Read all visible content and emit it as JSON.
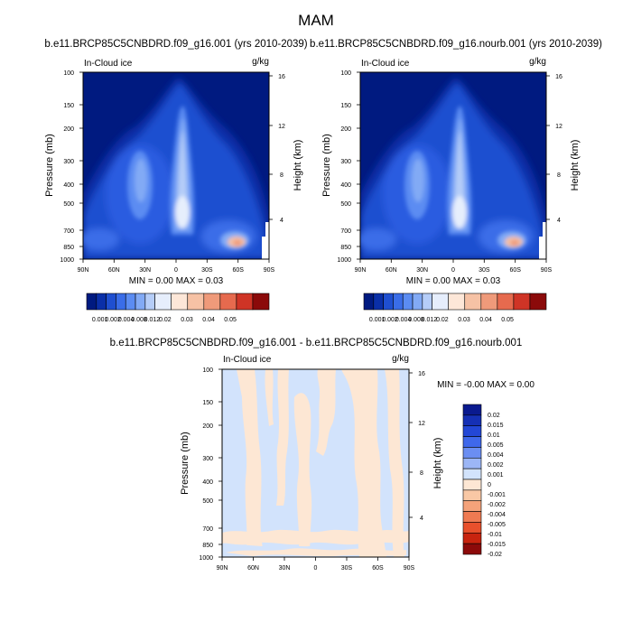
{
  "page": {
    "title": "MAM"
  },
  "colors": {
    "seq_colorbar": [
      "#001a80",
      "#0a2fa8",
      "#1f4fd0",
      "#3a6de8",
      "#5b8cf2",
      "#82aaf5",
      "#b5cdf8",
      "#e6eefc",
      "#fde7d8",
      "#f6c2a5",
      "#ef9a7a",
      "#e66a4e",
      "#cf3426",
      "#8b0a0a"
    ],
    "diff_colorbar": [
      "#0a1a8f",
      "#1530b5",
      "#2347d6",
      "#3f68eb",
      "#6b8ef2",
      "#9cb6f6",
      "#d2e3fc",
      "#fde7d4",
      "#f9c8a5",
      "#f4a27a",
      "#ef7a52",
      "#e8502c",
      "#c8240f",
      "#8c0a0a"
    ],
    "diff_pos": "#fde7d4",
    "diff_neg": "#d2e3fc"
  },
  "chart_data": [
    {
      "type": "heatmap",
      "title": "b.e11.BRCP85C5CNBDRD.f09_g16.001 (yrs 2010-2039)",
      "left_label": "In-Cloud ice",
      "right_label": "g/kg",
      "ylabel": "Pressure (mb)",
      "ylabel_right": "Height (km)",
      "x_ticks": [
        "90N",
        "60N",
        "30N",
        "0",
        "30S",
        "60S",
        "90S"
      ],
      "x_values": [
        90,
        60,
        30,
        0,
        -30,
        -60,
        -90
      ],
      "y_ticks": [
        "100",
        "150",
        "200",
        "300",
        "400",
        "500",
        "700",
        "850",
        "1000"
      ],
      "y_values": [
        100,
        150,
        200,
        300,
        400,
        500,
        700,
        850,
        1000
      ],
      "y2_ticks": [
        "4",
        "8",
        "12",
        "16"
      ],
      "y2_values": [
        4,
        8,
        12,
        16
      ],
      "min_max": "MIN =   0.00  MAX =   0.03",
      "colorbar_labels": [
        "0.001",
        "0.002",
        "0.004",
        "0.008",
        "0.012",
        "0.02",
        "0.03",
        "0.04",
        "0.05"
      ],
      "levels": [
        0.001,
        0.002,
        0.004,
        0.008,
        0.012,
        0.02,
        0.03,
        0.04,
        0.05
      ]
    },
    {
      "type": "heatmap",
      "title": "b.e11.BRCP85C5CNBDRD.f09_g16.nourb.001 (yrs 2010-2039)",
      "left_label": "In-Cloud ice",
      "right_label": "g/kg",
      "ylabel": "Pressure (mb)",
      "ylabel_right": "Height (km)",
      "x_ticks": [
        "90N",
        "60N",
        "30N",
        "0",
        "30S",
        "60S",
        "90S"
      ],
      "x_values": [
        90,
        60,
        30,
        0,
        -30,
        -60,
        -90
      ],
      "y_ticks": [
        "100",
        "150",
        "200",
        "300",
        "400",
        "500",
        "700",
        "850",
        "1000"
      ],
      "y_values": [
        100,
        150,
        200,
        300,
        400,
        500,
        700,
        850,
        1000
      ],
      "y2_ticks": [
        "4",
        "8",
        "12",
        "16"
      ],
      "y2_values": [
        4,
        8,
        12,
        16
      ],
      "min_max": "MIN =   0.00  MAX =   0.03",
      "colorbar_labels": [
        "0.001",
        "0.002",
        "0.004",
        "0.008",
        "0.012",
        "0.02",
        "0.03",
        "0.04",
        "0.05"
      ],
      "levels": [
        0.001,
        0.002,
        0.004,
        0.008,
        0.012,
        0.02,
        0.03,
        0.04,
        0.05
      ]
    },
    {
      "type": "heatmap",
      "title": "b.e11.BRCP85C5CNBDRD.f09_g16.001 - b.e11.BRCP85C5CNBDRD.f09_g16.nourb.001",
      "left_label": "In-Cloud ice",
      "right_label": "g/kg",
      "ylabel": "Pressure (mb)",
      "ylabel_right": "Height (km)",
      "x_ticks": [
        "90N",
        "60N",
        "30N",
        "0",
        "30S",
        "60S",
        "90S"
      ],
      "x_values": [
        90,
        60,
        30,
        0,
        -30,
        -60,
        -90
      ],
      "y_ticks": [
        "100",
        "150",
        "200",
        "300",
        "400",
        "500",
        "700",
        "850",
        "1000"
      ],
      "y_values": [
        100,
        150,
        200,
        300,
        400,
        500,
        700,
        850,
        1000
      ],
      "y2_ticks": [
        "4",
        "8",
        "12",
        "16"
      ],
      "y2_values": [
        4,
        8,
        12,
        16
      ],
      "min_max": "MIN =  -0.00  MAX =   0.00",
      "colorbar_labels": [
        "0.02",
        "0.015",
        "0.01",
        "0.005",
        "0.004",
        "0.002",
        "0.001",
        "0",
        "-0.001",
        "-0.002",
        "-0.004",
        "-0.005",
        "-0.01",
        "-0.015",
        "-0.02"
      ],
      "levels": [
        0.02,
        0.015,
        0.01,
        0.005,
        0.004,
        0.002,
        0.001,
        0,
        -0.001,
        -0.002,
        -0.004,
        -0.005,
        -0.01,
        -0.015,
        -0.02
      ]
    }
  ]
}
